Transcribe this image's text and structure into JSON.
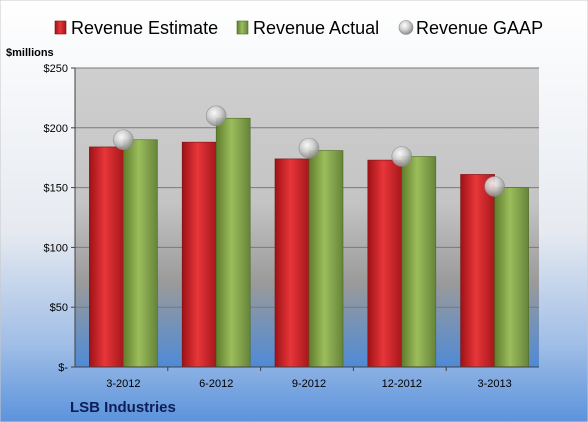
{
  "chart_data": {
    "type": "bar",
    "categories": [
      "3-2012",
      "6-2012",
      "9-2012",
      "12-2012",
      "3-2013"
    ],
    "series": [
      {
        "name": "Revenue Estimate",
        "type": "bar",
        "color": "#d0262b",
        "values": [
          184,
          188,
          174,
          173,
          161
        ]
      },
      {
        "name": "Revenue Actual",
        "type": "bar",
        "color": "#8cab4c",
        "values": [
          190,
          208,
          181,
          176,
          150
        ]
      },
      {
        "name": "Revenue GAAP",
        "type": "marker",
        "color": "#b9b9b9",
        "values": [
          190,
          210,
          183,
          176,
          151
        ]
      }
    ],
    "ylabel": "$millions",
    "ylim": [
      0,
      250
    ],
    "yticks": [
      0,
      50,
      100,
      150,
      200,
      250
    ],
    "ytick_labels": [
      "$-",
      "$50",
      "$100",
      "$150",
      "$200",
      "$250"
    ],
    "grid": true,
    "legend_position": "top",
    "company": "LSB Industries"
  }
}
